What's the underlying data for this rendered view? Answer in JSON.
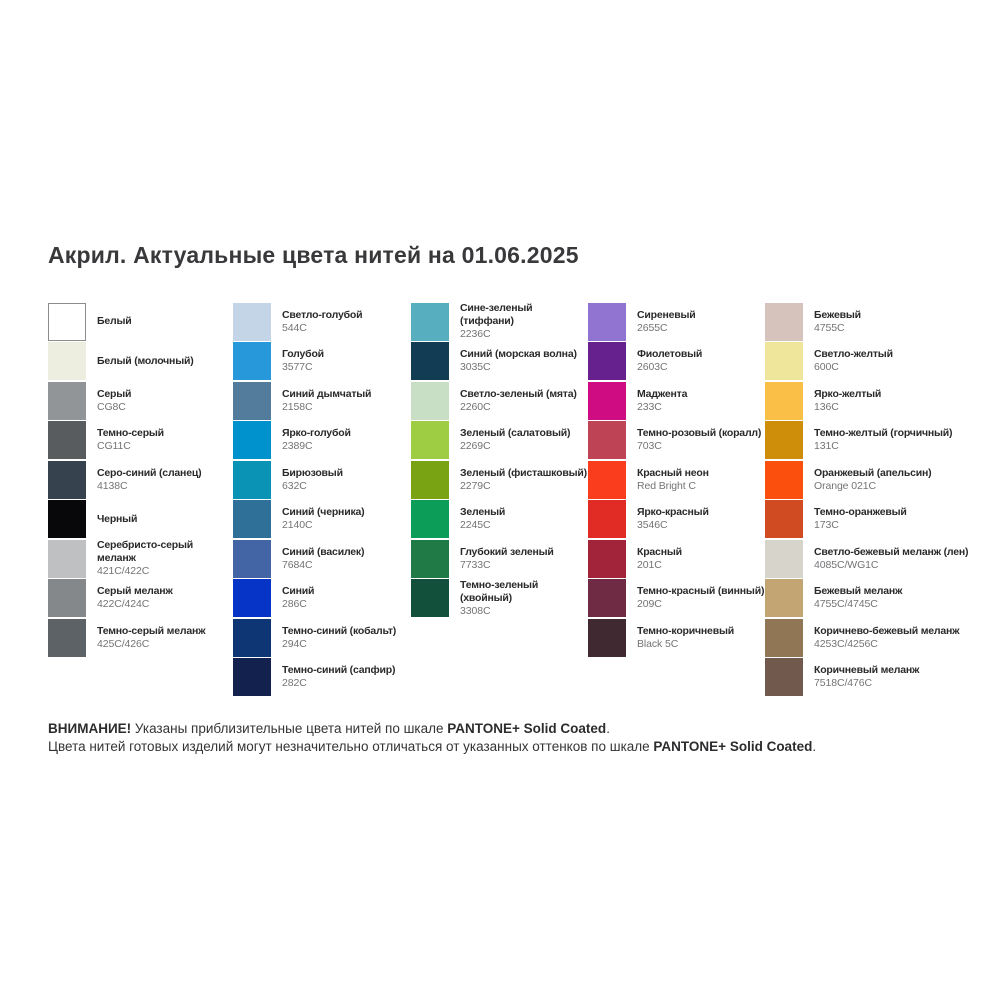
{
  "title": "Акрил. Актуальные цвета нитей на 01.06.2025",
  "palette": {
    "columns": [
      {
        "items": [
          {
            "name": "Белый",
            "code": "",
            "hex": "#ffffff",
            "bordered": true
          },
          {
            "name": "Белый (молочный)",
            "code": "",
            "hex": "#edeedf"
          },
          {
            "name": "Серый",
            "code": "CG8C",
            "hex": "#929597"
          },
          {
            "name": "Темно-серый",
            "code": "CG11C",
            "hex": "#585c5f"
          },
          {
            "name": "Серо-синий (сланец)",
            "code": "4138C",
            "hex": "#36424e"
          },
          {
            "name": "Черный",
            "code": "",
            "hex": "#08080a"
          },
          {
            "name": "Серебристо-серый меланж",
            "code": "421C/422C",
            "hex": "#bfc0c1"
          },
          {
            "name": "Серый меланж",
            "code": "422C/424C",
            "hex": "#85888b"
          },
          {
            "name": "Темно-серый меланж",
            "code": "425C/426C",
            "hex": "#5d6266"
          }
        ]
      },
      {
        "items": [
          {
            "name": "Светло-голубой",
            "code": "544C",
            "hex": "#c3d5e7"
          },
          {
            "name": "Голубой",
            "code": "3577C",
            "hex": "#2799da"
          },
          {
            "name": "Синий дымчатый",
            "code": "2158C",
            "hex": "#537c9c"
          },
          {
            "name": "Ярко-голубой",
            "code": "2389C",
            "hex": "#0092cc"
          },
          {
            "name": "Бирюзовый",
            "code": "632C",
            "hex": "#0a93b5"
          },
          {
            "name": "Синий (черника)",
            "code": "2140C",
            "hex": "#2f7099"
          },
          {
            "name": "Синий (василек)",
            "code": "7684C",
            "hex": "#4365a6"
          },
          {
            "name": "Синий",
            "code": "286C",
            "hex": "#0634c6"
          },
          {
            "name": "Темно-синий (кобальт)",
            "code": "294C",
            "hex": "#0f3674"
          },
          {
            "name": "Темно-синий (сапфир)",
            "code": "282C",
            "hex": "#12214d"
          }
        ]
      },
      {
        "items": [
          {
            "name": "Сине-зеленый (тиффани)",
            "code": "2236C",
            "hex": "#57aebe"
          },
          {
            "name": "Синий (морская волна)",
            "code": "3035C",
            "hex": "#123c54"
          },
          {
            "name": "Светло-зеленый (мята)",
            "code": "2260C",
            "hex": "#c8dfc5"
          },
          {
            "name": "Зеленый (салатовый)",
            "code": "2269C",
            "hex": "#9ecc42"
          },
          {
            "name": "Зеленый (фисташковый)",
            "code": "2279C",
            "hex": "#7aa314"
          },
          {
            "name": "Зеленый",
            "code": "2245C",
            "hex": "#0c9e59"
          },
          {
            "name": "Глубокий зеленый",
            "code": "7733C",
            "hex": "#1f7a45"
          },
          {
            "name": "Темно-зеленый (хвойный)",
            "code": "3308C",
            "hex": "#12503b"
          }
        ]
      },
      {
        "items": [
          {
            "name": "Сиреневый",
            "code": "2655C",
            "hex": "#9173d2"
          },
          {
            "name": "Фиолетовый",
            "code": "2603C",
            "hex": "#67218f"
          },
          {
            "name": "Маджента",
            "code": "233C",
            "hex": "#d00c82"
          },
          {
            "name": "Темно-розовый (коралл)",
            "code": "703C",
            "hex": "#be4455"
          },
          {
            "name": "Красный неон",
            "code": "Red Bright C",
            "hex": "#fa3d1d"
          },
          {
            "name": "Ярко-красный",
            "code": "3546C",
            "hex": "#e12b25"
          },
          {
            "name": "Красный",
            "code": "201C",
            "hex": "#a2243a"
          },
          {
            "name": "Темно-красный (винный)",
            "code": "209C",
            "hex": "#702b44"
          },
          {
            "name": "Темно-коричневый",
            "code": "Black 5C",
            "hex": "#402930"
          }
        ]
      },
      {
        "items": [
          {
            "name": "Бежевый",
            "code": "4755C",
            "hex": "#d5c3bc"
          },
          {
            "name": "Светло-желтый",
            "code": "600C",
            "hex": "#f0e69b"
          },
          {
            "name": "Ярко-желтый",
            "code": "136C",
            "hex": "#fabf47"
          },
          {
            "name": "Темно-желтый (горчичный)",
            "code": "131C",
            "hex": "#cf8e0a"
          },
          {
            "name": "Оранжевый (апельсин)",
            "code": "Orange 021C",
            "hex": "#fb4f0e"
          },
          {
            "name": "Темно-оранжевый",
            "code": "173C",
            "hex": "#d14b22"
          },
          {
            "name": "Светло-бежевый меланж (лен)",
            "code": "4085C/WG1C",
            "hex": "#d7d4cc"
          },
          {
            "name": "Бежевый меланж",
            "code": "4755C/4745C",
            "hex": "#c3a573"
          },
          {
            "name": "Коричнево-бежевый меланж",
            "code": "4253C/4256C",
            "hex": "#917655"
          },
          {
            "name": "Коричневый меланж",
            "code": "7518C/476C",
            "hex": "#72594e"
          }
        ]
      }
    ]
  },
  "footer": {
    "lines": [
      [
        {
          "t": "ВНИМАНИЕ!",
          "b": true
        },
        {
          "t": " Указаны приблизительные цвета нитей по шкале ",
          "b": false
        },
        {
          "t": "PANTONE+ Solid Coated",
          "b": true
        },
        {
          "t": ".",
          "b": false
        }
      ],
      [
        {
          "t": "Цвета нитей готовых изделий могут незначительно отличаться от указанных оттенков по шкале ",
          "b": false
        },
        {
          "t": "PANTONE+ Solid Coated",
          "b": true
        },
        {
          "t": ".",
          "b": false
        }
      ]
    ]
  }
}
